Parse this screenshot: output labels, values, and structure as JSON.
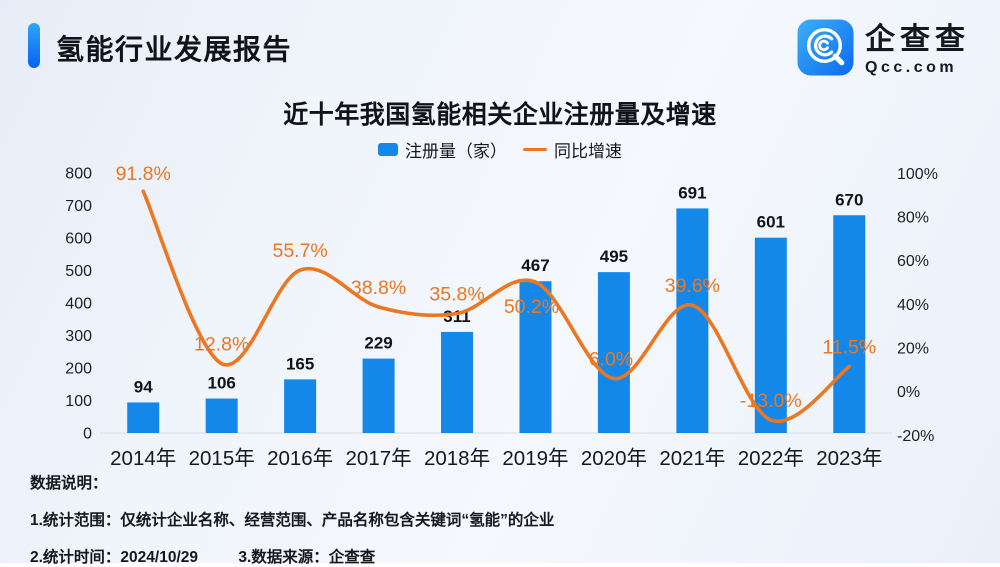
{
  "header": {
    "title": "氢能行业发展报告",
    "logo": {
      "name": "企查查",
      "domain": "Qcc.com"
    }
  },
  "chart": {
    "title": "近十年我国氢能相关企业注册量及增速",
    "legend": [
      {
        "label": "注册量（家）",
        "type": "bar"
      },
      {
        "label": "同比增速",
        "type": "line"
      }
    ]
  },
  "chart_data": {
    "type": "bar",
    "title": "近十年我国氢能相关企业注册量及增速",
    "categories": [
      "2014年",
      "2015年",
      "2016年",
      "2017年",
      "2018年",
      "2019年",
      "2020年",
      "2021年",
      "2022年",
      "2023年"
    ],
    "series": [
      {
        "name": "注册量（家）",
        "type": "bar",
        "axis": "left",
        "color": "#1388e9",
        "values": [
          94,
          106,
          165,
          229,
          311,
          467,
          495,
          691,
          601,
          670
        ],
        "value_labels": [
          "94",
          "106",
          "165",
          "229",
          "311",
          "467",
          "495",
          "691",
          "601",
          "670"
        ]
      },
      {
        "name": "同比增速",
        "type": "line",
        "axis": "right",
        "color": "#ed7621",
        "values": [
          91.8,
          12.8,
          55.7,
          38.8,
          35.8,
          50.2,
          6.0,
          39.6,
          -13.0,
          11.5
        ],
        "value_labels": [
          "91.8%",
          "12.8%",
          "55.7%",
          "38.8%",
          "35.8%",
          "50.2%",
          "6.0%",
          "39.6%",
          "-13.0%",
          "11.5%"
        ]
      }
    ],
    "left_axis": {
      "range": [
        0,
        800
      ],
      "ticks": [
        0,
        100,
        200,
        300,
        400,
        500,
        600,
        700,
        800
      ]
    },
    "right_axis": {
      "range": [
        -20,
        100
      ],
      "tick_values": [
        100,
        80,
        60,
        40,
        20,
        0,
        -20
      ],
      "tick_labels": [
        "100%",
        "80%",
        "60%",
        "40%",
        "20%",
        "0%",
        "-20%"
      ]
    },
    "grid": false,
    "legend_position": "top"
  },
  "footer": {
    "heading": "数据说明：",
    "note1": "1.统计范围：仅统计企业名称、经营范围、产品名称包含关键词“氢能”的企业",
    "note2": "2.统计时间：2024/10/29",
    "note3": "3.数据来源：企查查"
  },
  "colors": {
    "bar": "#1388e9",
    "line": "#ed7621",
    "accent_top": "#2ea6f7",
    "accent_bottom": "#0862ee"
  }
}
